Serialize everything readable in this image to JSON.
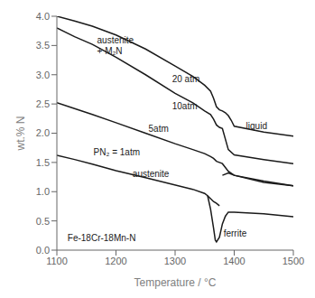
{
  "chart_data": {
    "type": "line",
    "xlabel": "Temperature / °C",
    "ylabel": "wt.% N",
    "xlim": [
      1100,
      1500
    ],
    "ylim": [
      0,
      4.0
    ],
    "xticks": [
      1100,
      1200,
      1300,
      1400,
      1500
    ],
    "yticks": [
      {
        "value": 0,
        "label": "0.0"
      },
      0.5,
      {
        "value": 1.0,
        "label": "1.0"
      },
      1.5,
      {
        "value": 2.0,
        "label": "2.0"
      },
      2.5,
      {
        "value": 3.0,
        "label": "3.0"
      },
      3.5,
      {
        "value": 4.0,
        "label": "4.0"
      }
    ],
    "grid": false,
    "series": [
      {
        "color": "#1a1a1a",
        "x": [
          1100,
          1130,
          1160,
          1200,
          1250,
          1300,
          1330,
          1350,
          1360,
          1365,
          1370,
          1375,
          1380,
          1385,
          1390,
          1395,
          1400,
          1450,
          1500
        ],
        "values": [
          4.0,
          3.92,
          3.83,
          3.68,
          3.44,
          3.15,
          2.97,
          2.82,
          2.72,
          2.6,
          2.45,
          2.4,
          2.38,
          2.35,
          2.3,
          2.22,
          2.12,
          2.02,
          1.95
        ]
      },
      {
        "color": "#1a1a1a",
        "x": [
          1100,
          1130,
          1160,
          1200,
          1250,
          1300,
          1330,
          1350,
          1360,
          1365,
          1370,
          1375,
          1380,
          1390,
          1400,
          1450,
          1500
        ],
        "values": [
          3.8,
          3.65,
          3.52,
          3.3,
          3.0,
          2.68,
          2.52,
          2.38,
          2.32,
          2.24,
          2.14,
          2.1,
          2.08,
          1.72,
          1.63,
          1.55,
          1.48
        ]
      },
      {
        "color": "#1a1a1a",
        "x": [
          1100,
          1130,
          1160,
          1200,
          1250,
          1300,
          1330,
          1350,
          1360,
          1365,
          1370,
          1375,
          1380,
          1390,
          1400,
          1450,
          1500
        ],
        "values": [
          2.52,
          2.42,
          2.32,
          2.18,
          2.0,
          1.82,
          1.72,
          1.65,
          1.6,
          1.57,
          1.52,
          1.5,
          1.48,
          1.35,
          1.28,
          1.18,
          1.1
        ]
      },
      {
        "color": "#1a1a1a",
        "x": [
          1100,
          1130,
          1160,
          1200,
          1250,
          1290,
          1310,
          1330,
          1350,
          1355,
          1360,
          1365,
          1370,
          1375
        ],
        "values": [
          1.62,
          1.55,
          1.47,
          1.36,
          1.24,
          1.14,
          1.09,
          1.04,
          0.97,
          0.93,
          0.88,
          0.83,
          0.8,
          0.76
        ]
      },
      {
        "color": "#1a1a1a",
        "x": [
          1380,
          1390,
          1400,
          1450,
          1500
        ],
        "values": [
          1.28,
          1.32,
          1.28,
          1.16,
          1.1
        ]
      },
      {
        "color": "#1a1a1a",
        "x": [
          1355,
          1360,
          1365,
          1368,
          1370,
          1375,
          1380,
          1385,
          1390,
          1400,
          1450,
          1500
        ],
        "values": [
          0.93,
          0.7,
          0.38,
          0.17,
          0.14,
          0.22,
          0.45,
          0.58,
          0.65,
          0.65,
          0.62,
          0.57
        ]
      }
    ],
    "annotations": [
      {
        "x": 1168,
        "y": 3.5,
        "text": "austenite\n+ M₂N"
      },
      {
        "x": 1295,
        "y": 2.93,
        "text": "20 atm"
      },
      {
        "x": 1295,
        "y": 2.47,
        "text": "10atm"
      },
      {
        "x": 1255,
        "y": 2.08,
        "text": "5atm"
      },
      {
        "x": 1162,
        "y": 1.68,
        "text": "PN₂ = 1atm"
      },
      {
        "x": 1228,
        "y": 1.32,
        "text": "austenite"
      },
      {
        "x": 1420,
        "y": 2.13,
        "text": "liquid"
      },
      {
        "x": 1382,
        "y": 0.3,
        "text": "ferrite"
      },
      {
        "x": 1118,
        "y": 0.22,
        "text": "Fe-18Cr-18Mn-N"
      }
    ]
  }
}
